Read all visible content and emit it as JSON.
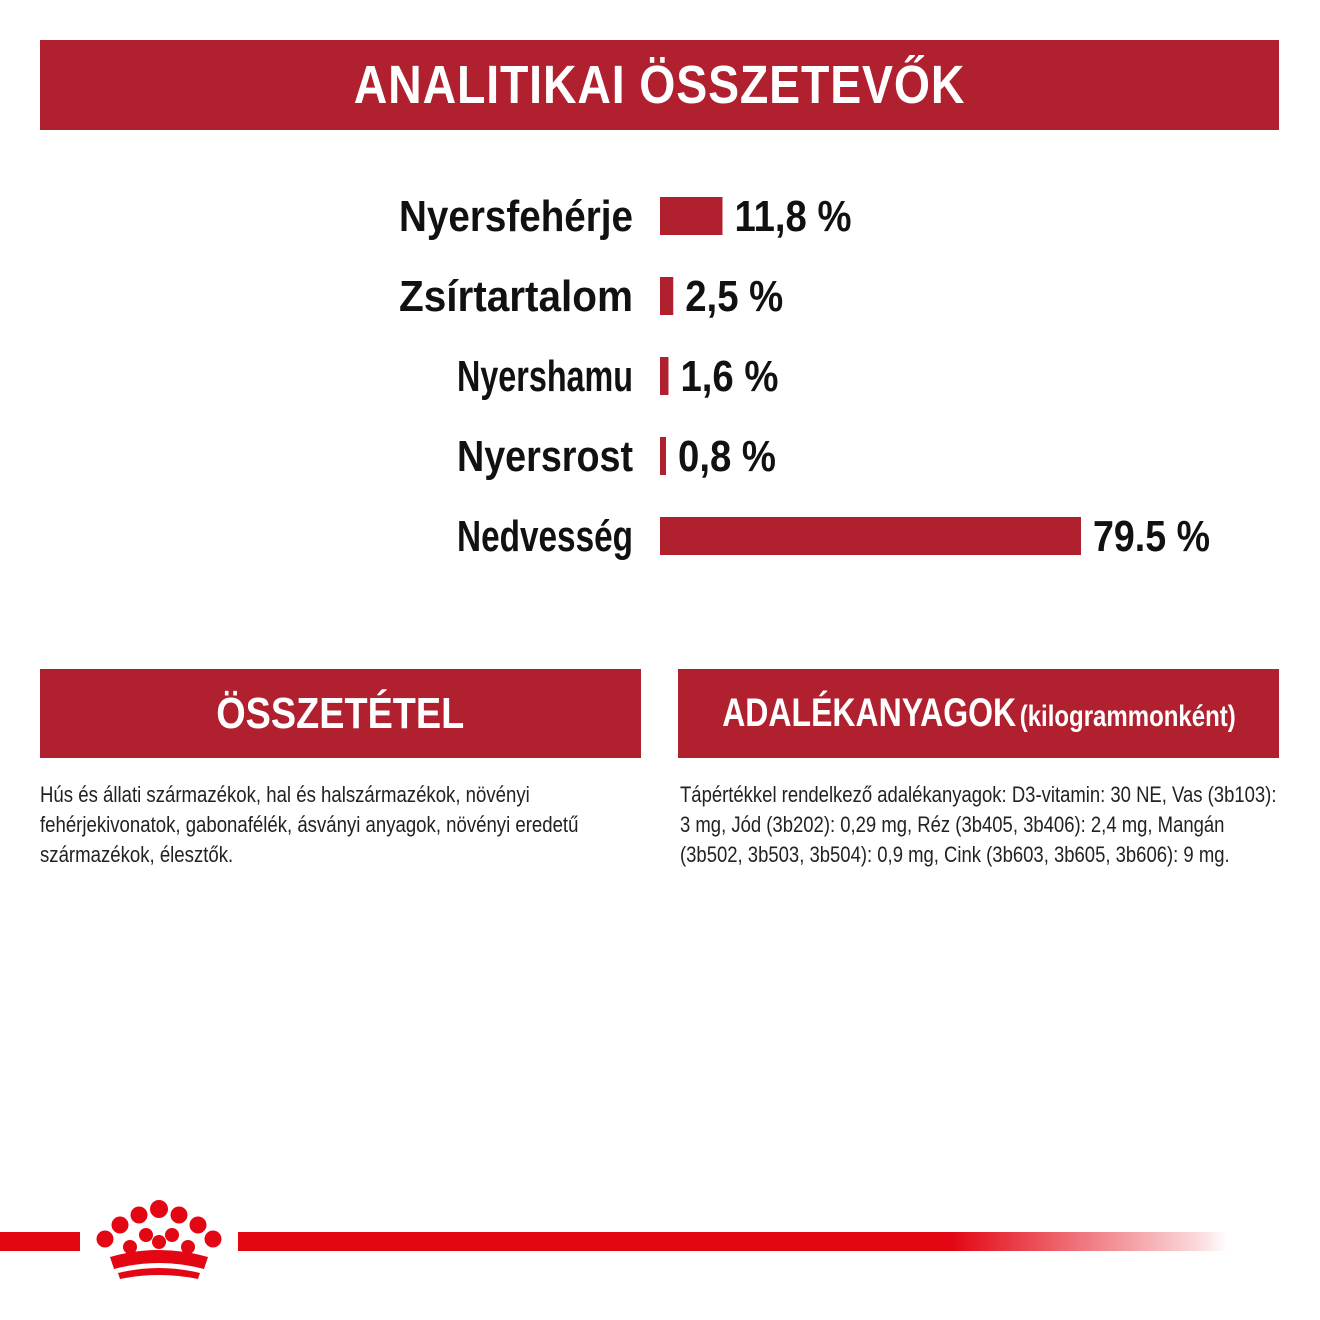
{
  "title": "ANALITIKAI ÖSSZETEVŐK",
  "chart_data": {
    "type": "bar",
    "orientation": "horizontal",
    "categories": [
      "Nyersfehérje",
      "Zsírtartalom",
      "Nyershamu",
      "Nyersrost",
      "Nedvesség"
    ],
    "values": [
      11.8,
      2.5,
      1.6,
      0.8,
      79.5
    ],
    "value_labels": [
      "11,8 %",
      "2,5 %",
      "1,6 %",
      "0,8 %",
      "79.5 %"
    ],
    "bar_color": "#b0202e",
    "xlim": [
      0,
      79.5
    ],
    "grid": false,
    "legend": "none"
  },
  "composition": {
    "heading": "ÖSSZETÉTEL",
    "text": "Hús és állati származékok, hal és halszármazékok, növényi fehérjekivonatok, gabonafélék, ásványi anyagok, növényi eredetű származékok, élesztők."
  },
  "additives": {
    "heading": "ADALÉKANYAGOK",
    "heading_suffix": "(kilogrammonként)",
    "text": "Tápértékkel rendelkező adalékanyagok: D3-vitamin: 30 NE, Vas (3b103): 3 mg, Jód (3b202): 0,29 mg, Réz (3b405, 3b406): 2,4 mg, Mangán (3b502, 3b503, 3b504): 0,9 mg, Cink (3b603, 3b605, 3b606): 9 mg."
  },
  "colors": {
    "banner": "#b0202e",
    "footer_line": "#e30613"
  },
  "footer": {
    "logo_icon": "crown-icon"
  }
}
